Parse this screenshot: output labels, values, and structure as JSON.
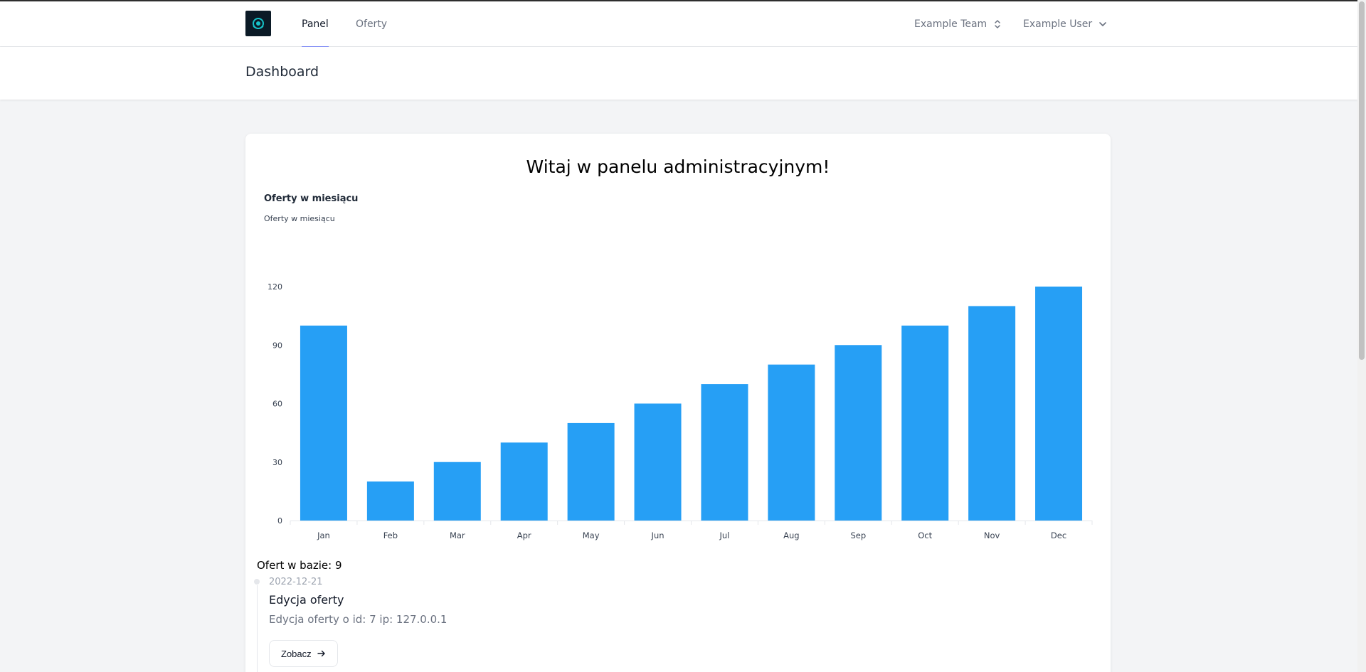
{
  "nav": {
    "links": [
      "Panel",
      "Oferty"
    ],
    "team": "Example Team",
    "user": "Example User"
  },
  "header": {
    "title": "Dashboard"
  },
  "main": {
    "welcome": "Witaj w panelu administracyjnym!",
    "chart_heading": "Oferty w miesiącu",
    "offer_count": "Ofert w bazie: 9",
    "timeline": {
      "date": "2022-12-21",
      "title": "Edycja oferty",
      "desc": "Edycja oferty o id: 7 ip: 127.0.0.1",
      "button": "Zobacz"
    }
  },
  "colors": {
    "bar": "#269ff5",
    "accent": "#818cf8"
  },
  "chart_data": {
    "type": "bar",
    "title": "Oferty w miesiącu",
    "categories": [
      "Jan",
      "Feb",
      "Mar",
      "Apr",
      "May",
      "Jun",
      "Jul",
      "Aug",
      "Sep",
      "Oct",
      "Nov",
      "Dec"
    ],
    "series": [
      {
        "name": "Oferty w miesiącu",
        "values": [
          100,
          20,
          30,
          40,
          50,
          60,
          70,
          80,
          90,
          100,
          110,
          120
        ]
      }
    ],
    "ylim": [
      0,
      120
    ],
    "yticks": [
      0,
      30,
      60,
      90,
      120
    ],
    "grid": false,
    "legend": "top-left"
  }
}
